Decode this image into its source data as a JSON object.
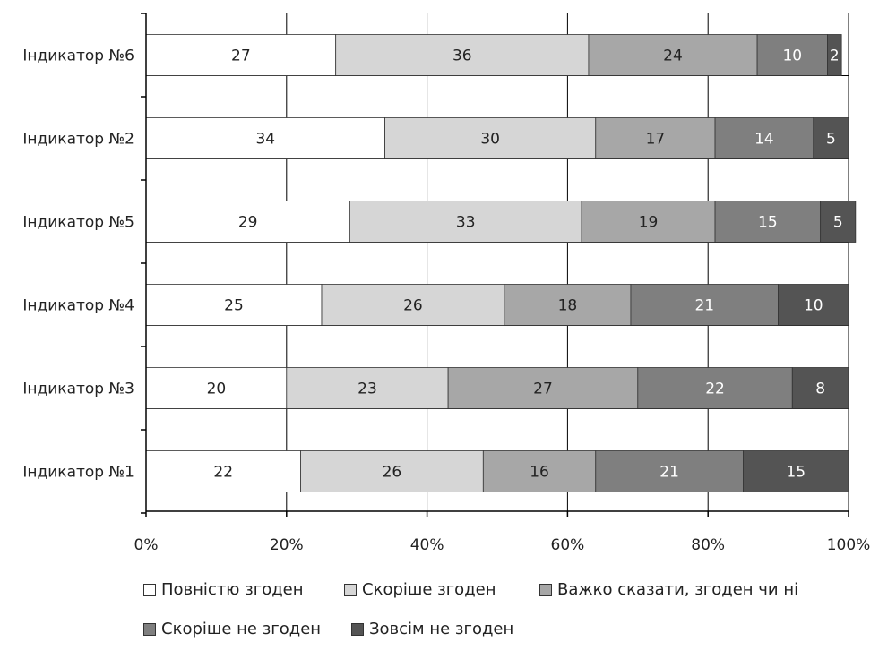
{
  "chart_data": {
    "type": "bar",
    "orientation": "horizontal",
    "stacked": true,
    "categories": [
      "Індикатор №6",
      "Індикатор №2",
      "Індикатор №5",
      "Індикатор №4",
      "Індикатор №3",
      "Індикатор №1"
    ],
    "series": [
      {
        "name": "Повністю згоден",
        "color": "#ffffff",
        "label_color": "#222222",
        "values": [
          27,
          34,
          29,
          25,
          20,
          22
        ]
      },
      {
        "name": "Скоріше згоден",
        "color": "#d6d6d6",
        "label_color": "#222222",
        "values": [
          36,
          30,
          33,
          26,
          23,
          26
        ]
      },
      {
        "name": "Важко сказати, згоден чи ні",
        "color": "#a7a7a7",
        "label_color": "#222222",
        "values": [
          24,
          17,
          19,
          18,
          27,
          16
        ]
      },
      {
        "name": "Скоріше не згоден",
        "color": "#7f7f7f",
        "label_color": "#ffffff",
        "values": [
          10,
          14,
          15,
          21,
          22,
          21
        ]
      },
      {
        "name": "Зовсім не згоден",
        "color": "#545454",
        "label_color": "#ffffff",
        "values": [
          2,
          5,
          5,
          10,
          8,
          15
        ]
      }
    ],
    "x_ticks": [
      "0%",
      "20%",
      "40%",
      "60%",
      "80%",
      "100%"
    ],
    "xlim": [
      0,
      100
    ],
    "grid": true,
    "legend_position": "bottom"
  }
}
